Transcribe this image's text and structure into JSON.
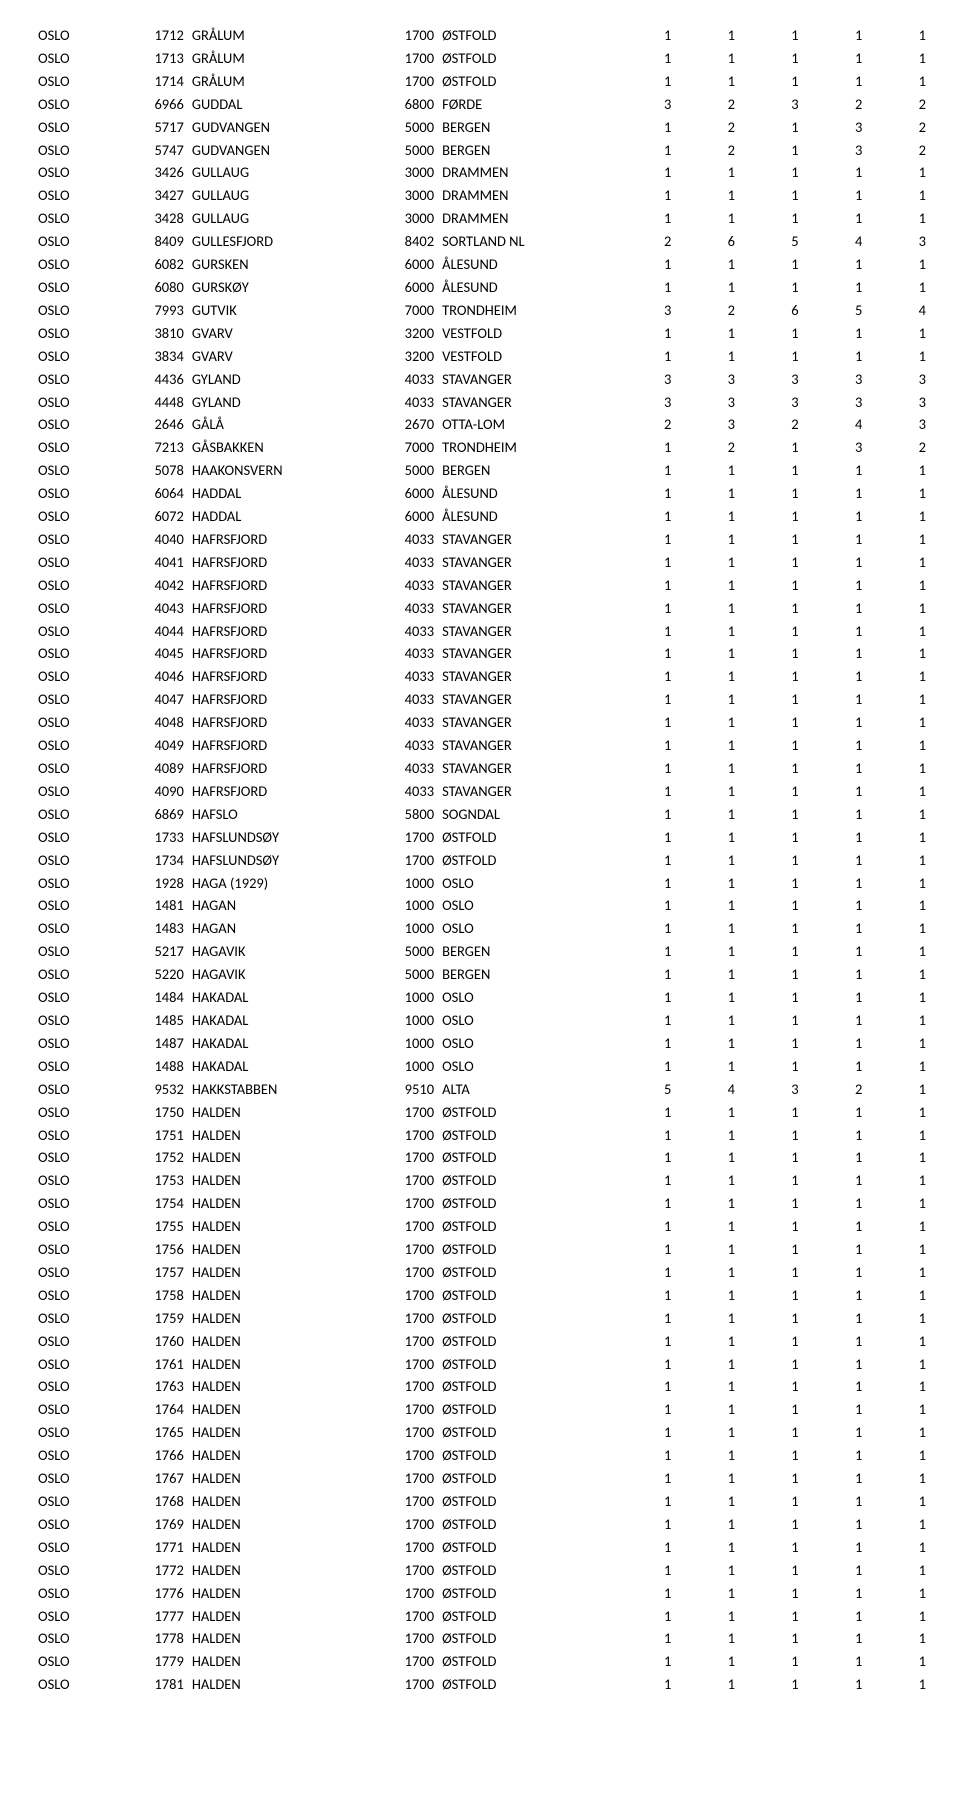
{
  "rows": [
    [
      "OSLO",
      "1712",
      "GRÅLUM",
      "1700",
      "ØSTFOLD",
      "1",
      "1",
      "1",
      "1",
      "1"
    ],
    [
      "OSLO",
      "1713",
      "GRÅLUM",
      "1700",
      "ØSTFOLD",
      "1",
      "1",
      "1",
      "1",
      "1"
    ],
    [
      "OSLO",
      "1714",
      "GRÅLUM",
      "1700",
      "ØSTFOLD",
      "1",
      "1",
      "1",
      "1",
      "1"
    ],
    [
      "OSLO",
      "6966",
      "GUDDAL",
      "6800",
      "FØRDE",
      "3",
      "2",
      "3",
      "2",
      "2"
    ],
    [
      "OSLO",
      "5717",
      "GUDVANGEN",
      "5000",
      "BERGEN",
      "1",
      "2",
      "1",
      "3",
      "2"
    ],
    [
      "OSLO",
      "5747",
      "GUDVANGEN",
      "5000",
      "BERGEN",
      "1",
      "2",
      "1",
      "3",
      "2"
    ],
    [
      "OSLO",
      "3426",
      "GULLAUG",
      "3000",
      "DRAMMEN",
      "1",
      "1",
      "1",
      "1",
      "1"
    ],
    [
      "OSLO",
      "3427",
      "GULLAUG",
      "3000",
      "DRAMMEN",
      "1",
      "1",
      "1",
      "1",
      "1"
    ],
    [
      "OSLO",
      "3428",
      "GULLAUG",
      "3000",
      "DRAMMEN",
      "1",
      "1",
      "1",
      "1",
      "1"
    ],
    [
      "OSLO",
      "8409",
      "GULLESFJORD",
      "8402",
      "SORTLAND NL",
      "2",
      "6",
      "5",
      "4",
      "3"
    ],
    [
      "OSLO",
      "6082",
      "GURSKEN",
      "6000",
      "ÅLESUND",
      "1",
      "1",
      "1",
      "1",
      "1"
    ],
    [
      "OSLO",
      "6080",
      "GURSKØY",
      "6000",
      "ÅLESUND",
      "1",
      "1",
      "1",
      "1",
      "1"
    ],
    [
      "OSLO",
      "7993",
      "GUTVIK",
      "7000",
      "TRONDHEIM",
      "3",
      "2",
      "6",
      "5",
      "4"
    ],
    [
      "OSLO",
      "3810",
      "GVARV",
      "3200",
      "VESTFOLD",
      "1",
      "1",
      "1",
      "1",
      "1"
    ],
    [
      "OSLO",
      "3834",
      "GVARV",
      "3200",
      "VESTFOLD",
      "1",
      "1",
      "1",
      "1",
      "1"
    ],
    [
      "OSLO",
      "4436",
      "GYLAND",
      "4033",
      "STAVANGER",
      "3",
      "3",
      "3",
      "3",
      "3"
    ],
    [
      "OSLO",
      "4448",
      "GYLAND",
      "4033",
      "STAVANGER",
      "3",
      "3",
      "3",
      "3",
      "3"
    ],
    [
      "OSLO",
      "2646",
      "GÅLÅ",
      "2670",
      "OTTA-LOM",
      "2",
      "3",
      "2",
      "4",
      "3"
    ],
    [
      "OSLO",
      "7213",
      "GÅSBAKKEN",
      "7000",
      "TRONDHEIM",
      "1",
      "2",
      "1",
      "3",
      "2"
    ],
    [
      "OSLO",
      "5078",
      "HAAKONSVERN",
      "5000",
      "BERGEN",
      "1",
      "1",
      "1",
      "1",
      "1"
    ],
    [
      "OSLO",
      "6064",
      "HADDAL",
      "6000",
      "ÅLESUND",
      "1",
      "1",
      "1",
      "1",
      "1"
    ],
    [
      "OSLO",
      "6072",
      "HADDAL",
      "6000",
      "ÅLESUND",
      "1",
      "1",
      "1",
      "1",
      "1"
    ],
    [
      "OSLO",
      "4040",
      "HAFRSFJORD",
      "4033",
      "STAVANGER",
      "1",
      "1",
      "1",
      "1",
      "1"
    ],
    [
      "OSLO",
      "4041",
      "HAFRSFJORD",
      "4033",
      "STAVANGER",
      "1",
      "1",
      "1",
      "1",
      "1"
    ],
    [
      "OSLO",
      "4042",
      "HAFRSFJORD",
      "4033",
      "STAVANGER",
      "1",
      "1",
      "1",
      "1",
      "1"
    ],
    [
      "OSLO",
      "4043",
      "HAFRSFJORD",
      "4033",
      "STAVANGER",
      "1",
      "1",
      "1",
      "1",
      "1"
    ],
    [
      "OSLO",
      "4044",
      "HAFRSFJORD",
      "4033",
      "STAVANGER",
      "1",
      "1",
      "1",
      "1",
      "1"
    ],
    [
      "OSLO",
      "4045",
      "HAFRSFJORD",
      "4033",
      "STAVANGER",
      "1",
      "1",
      "1",
      "1",
      "1"
    ],
    [
      "OSLO",
      "4046",
      "HAFRSFJORD",
      "4033",
      "STAVANGER",
      "1",
      "1",
      "1",
      "1",
      "1"
    ],
    [
      "OSLO",
      "4047",
      "HAFRSFJORD",
      "4033",
      "STAVANGER",
      "1",
      "1",
      "1",
      "1",
      "1"
    ],
    [
      "OSLO",
      "4048",
      "HAFRSFJORD",
      "4033",
      "STAVANGER",
      "1",
      "1",
      "1",
      "1",
      "1"
    ],
    [
      "OSLO",
      "4049",
      "HAFRSFJORD",
      "4033",
      "STAVANGER",
      "1",
      "1",
      "1",
      "1",
      "1"
    ],
    [
      "OSLO",
      "4089",
      "HAFRSFJORD",
      "4033",
      "STAVANGER",
      "1",
      "1",
      "1",
      "1",
      "1"
    ],
    [
      "OSLO",
      "4090",
      "HAFRSFJORD",
      "4033",
      "STAVANGER",
      "1",
      "1",
      "1",
      "1",
      "1"
    ],
    [
      "OSLO",
      "6869",
      "HAFSLO",
      "5800",
      "SOGNDAL",
      "1",
      "1",
      "1",
      "1",
      "1"
    ],
    [
      "OSLO",
      "1733",
      "HAFSLUNDSØY",
      "1700",
      "ØSTFOLD",
      "1",
      "1",
      "1",
      "1",
      "1"
    ],
    [
      "OSLO",
      "1734",
      "HAFSLUNDSØY",
      "1700",
      "ØSTFOLD",
      "1",
      "1",
      "1",
      "1",
      "1"
    ],
    [
      "OSLO",
      "1928",
      "HAGA (1929)",
      "1000",
      "OSLO",
      "1",
      "1",
      "1",
      "1",
      "1"
    ],
    [
      "OSLO",
      "1481",
      "HAGAN",
      "1000",
      "OSLO",
      "1",
      "1",
      "1",
      "1",
      "1"
    ],
    [
      "OSLO",
      "1483",
      "HAGAN",
      "1000",
      "OSLO",
      "1",
      "1",
      "1",
      "1",
      "1"
    ],
    [
      "OSLO",
      "5217",
      "HAGAVIK",
      "5000",
      "BERGEN",
      "1",
      "1",
      "1",
      "1",
      "1"
    ],
    [
      "OSLO",
      "5220",
      "HAGAVIK",
      "5000",
      "BERGEN",
      "1",
      "1",
      "1",
      "1",
      "1"
    ],
    [
      "OSLO",
      "1484",
      "HAKADAL",
      "1000",
      "OSLO",
      "1",
      "1",
      "1",
      "1",
      "1"
    ],
    [
      "OSLO",
      "1485",
      "HAKADAL",
      "1000",
      "OSLO",
      "1",
      "1",
      "1",
      "1",
      "1"
    ],
    [
      "OSLO",
      "1487",
      "HAKADAL",
      "1000",
      "OSLO",
      "1",
      "1",
      "1",
      "1",
      "1"
    ],
    [
      "OSLO",
      "1488",
      "HAKADAL",
      "1000",
      "OSLO",
      "1",
      "1",
      "1",
      "1",
      "1"
    ],
    [
      "OSLO",
      "9532",
      "HAKKSTABBEN",
      "9510",
      "ALTA",
      "5",
      "4",
      "3",
      "2",
      "1"
    ],
    [
      "OSLO",
      "1750",
      "HALDEN",
      "1700",
      "ØSTFOLD",
      "1",
      "1",
      "1",
      "1",
      "1"
    ],
    [
      "OSLO",
      "1751",
      "HALDEN",
      "1700",
      "ØSTFOLD",
      "1",
      "1",
      "1",
      "1",
      "1"
    ],
    [
      "OSLO",
      "1752",
      "HALDEN",
      "1700",
      "ØSTFOLD",
      "1",
      "1",
      "1",
      "1",
      "1"
    ],
    [
      "OSLO",
      "1753",
      "HALDEN",
      "1700",
      "ØSTFOLD",
      "1",
      "1",
      "1",
      "1",
      "1"
    ],
    [
      "OSLO",
      "1754",
      "HALDEN",
      "1700",
      "ØSTFOLD",
      "1",
      "1",
      "1",
      "1",
      "1"
    ],
    [
      "OSLO",
      "1755",
      "HALDEN",
      "1700",
      "ØSTFOLD",
      "1",
      "1",
      "1",
      "1",
      "1"
    ],
    [
      "OSLO",
      "1756",
      "HALDEN",
      "1700",
      "ØSTFOLD",
      "1",
      "1",
      "1",
      "1",
      "1"
    ],
    [
      "OSLO",
      "1757",
      "HALDEN",
      "1700",
      "ØSTFOLD",
      "1",
      "1",
      "1",
      "1",
      "1"
    ],
    [
      "OSLO",
      "1758",
      "HALDEN",
      "1700",
      "ØSTFOLD",
      "1",
      "1",
      "1",
      "1",
      "1"
    ],
    [
      "OSLO",
      "1759",
      "HALDEN",
      "1700",
      "ØSTFOLD",
      "1",
      "1",
      "1",
      "1",
      "1"
    ],
    [
      "OSLO",
      "1760",
      "HALDEN",
      "1700",
      "ØSTFOLD",
      "1",
      "1",
      "1",
      "1",
      "1"
    ],
    [
      "OSLO",
      "1761",
      "HALDEN",
      "1700",
      "ØSTFOLD",
      "1",
      "1",
      "1",
      "1",
      "1"
    ],
    [
      "OSLO",
      "1763",
      "HALDEN",
      "1700",
      "ØSTFOLD",
      "1",
      "1",
      "1",
      "1",
      "1"
    ],
    [
      "OSLO",
      "1764",
      "HALDEN",
      "1700",
      "ØSTFOLD",
      "1",
      "1",
      "1",
      "1",
      "1"
    ],
    [
      "OSLO",
      "1765",
      "HALDEN",
      "1700",
      "ØSTFOLD",
      "1",
      "1",
      "1",
      "1",
      "1"
    ],
    [
      "OSLO",
      "1766",
      "HALDEN",
      "1700",
      "ØSTFOLD",
      "1",
      "1",
      "1",
      "1",
      "1"
    ],
    [
      "OSLO",
      "1767",
      "HALDEN",
      "1700",
      "ØSTFOLD",
      "1",
      "1",
      "1",
      "1",
      "1"
    ],
    [
      "OSLO",
      "1768",
      "HALDEN",
      "1700",
      "ØSTFOLD",
      "1",
      "1",
      "1",
      "1",
      "1"
    ],
    [
      "OSLO",
      "1769",
      "HALDEN",
      "1700",
      "ØSTFOLD",
      "1",
      "1",
      "1",
      "1",
      "1"
    ],
    [
      "OSLO",
      "1771",
      "HALDEN",
      "1700",
      "ØSTFOLD",
      "1",
      "1",
      "1",
      "1",
      "1"
    ],
    [
      "OSLO",
      "1772",
      "HALDEN",
      "1700",
      "ØSTFOLD",
      "1",
      "1",
      "1",
      "1",
      "1"
    ],
    [
      "OSLO",
      "1776",
      "HALDEN",
      "1700",
      "ØSTFOLD",
      "1",
      "1",
      "1",
      "1",
      "1"
    ],
    [
      "OSLO",
      "1777",
      "HALDEN",
      "1700",
      "ØSTFOLD",
      "1",
      "1",
      "1",
      "1",
      "1"
    ],
    [
      "OSLO",
      "1778",
      "HALDEN",
      "1700",
      "ØSTFOLD",
      "1",
      "1",
      "1",
      "1",
      "1"
    ],
    [
      "OSLO",
      "1779",
      "HALDEN",
      "1700",
      "ØSTFOLD",
      "1",
      "1",
      "1",
      "1",
      "1"
    ],
    [
      "OSLO",
      "1781",
      "HALDEN",
      "1700",
      "ØSTFOLD",
      "1",
      "1",
      "1",
      "1",
      "1"
    ]
  ]
}
